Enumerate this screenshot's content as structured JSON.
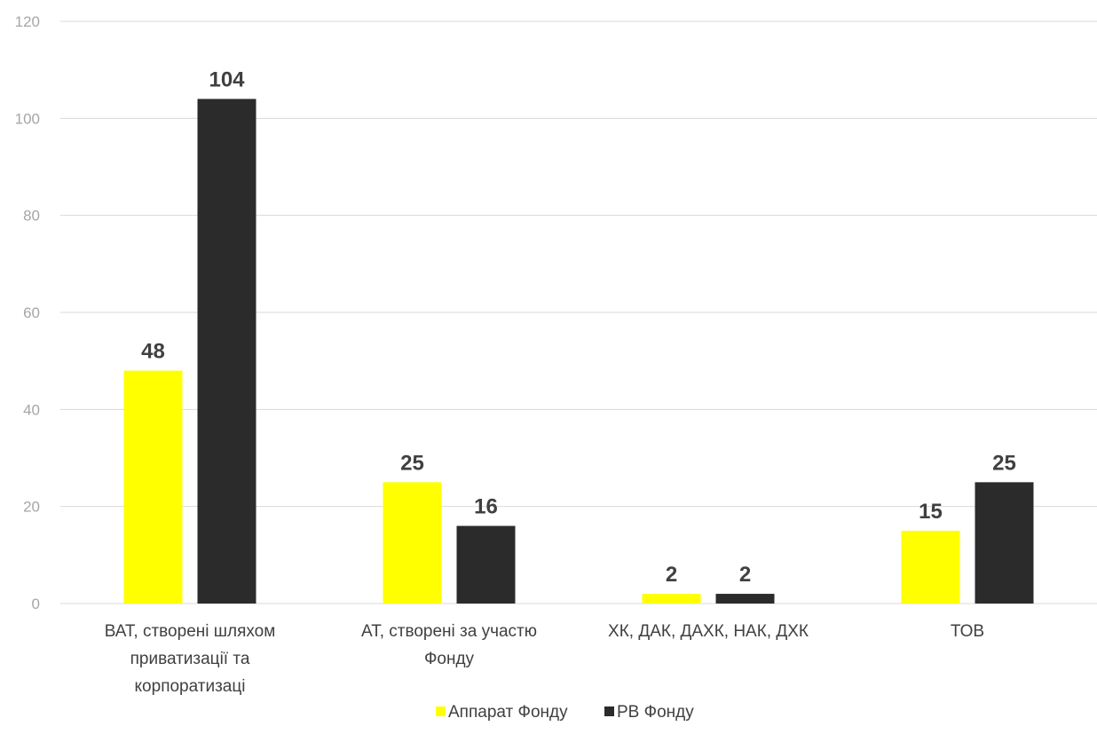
{
  "chart_data": {
    "type": "bar",
    "title": "",
    "xlabel": "",
    "ylabel": "",
    "ylim": [
      0,
      120
    ],
    "yticks": [
      0,
      20,
      40,
      60,
      80,
      100,
      120
    ],
    "grid": true,
    "legend_position": "bottom",
    "categories": [
      [
        "ВАТ, створені шляхом",
        "приватизації та",
        "корпоратизаці"
      ],
      [
        "АТ, створені за участю",
        "Фонду"
      ],
      [
        "ХК, ДАК, ДАХК, НАК, ДХК"
      ],
      [
        "ТОВ"
      ]
    ],
    "series": [
      {
        "name": "Аппарат Фонду",
        "color": "#ffff00",
        "values": [
          48,
          25,
          2,
          15
        ]
      },
      {
        "name": "РВ Фонду",
        "color": "#2b2b2b",
        "values": [
          104,
          16,
          2,
          25
        ]
      }
    ]
  }
}
